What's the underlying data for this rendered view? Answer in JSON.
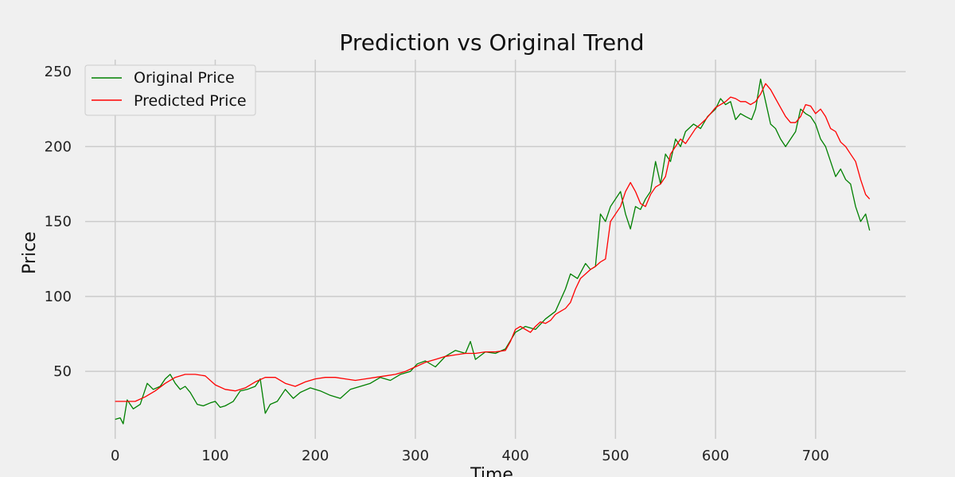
{
  "chart_data": {
    "type": "line",
    "title": "Prediction vs Original Trend",
    "xlabel": "Time",
    "ylabel": "Price",
    "xlim": [
      -30,
      790
    ],
    "ylim": [
      5,
      258
    ],
    "xticks": [
      0,
      100,
      200,
      300,
      400,
      500,
      600,
      700
    ],
    "yticks": [
      50,
      100,
      150,
      200,
      250
    ],
    "grid": true,
    "legend_position": "top-left",
    "background": "#f0f0f0",
    "series": [
      {
        "name": "Original Price",
        "color": "#008000",
        "x": [
          0,
          5,
          8,
          12,
          18,
          25,
          32,
          38,
          45,
          50,
          55,
          60,
          65,
          70,
          75,
          82,
          88,
          95,
          100,
          105,
          110,
          118,
          125,
          132,
          140,
          145,
          150,
          155,
          162,
          170,
          178,
          185,
          195,
          205,
          215,
          225,
          235,
          245,
          255,
          265,
          275,
          285,
          295,
          302,
          310,
          320,
          330,
          340,
          350,
          355,
          360,
          370,
          380,
          390,
          400,
          410,
          420,
          430,
          440,
          450,
          455,
          462,
          470,
          475,
          480,
          485,
          490,
          495,
          500,
          505,
          510,
          515,
          520,
          525,
          530,
          535,
          540,
          545,
          550,
          555,
          560,
          565,
          570,
          578,
          585,
          592,
          600,
          605,
          610,
          615,
          620,
          625,
          630,
          636,
          640,
          645,
          650,
          655,
          660,
          665,
          670,
          675,
          680,
          685,
          690,
          695,
          700,
          705,
          710,
          715,
          720,
          725,
          730,
          735,
          740,
          745,
          750,
          754
        ],
        "y": [
          18,
          19,
          15,
          31,
          25,
          28,
          42,
          38,
          40,
          45,
          48,
          42,
          38,
          40,
          36,
          28,
          27,
          29,
          30,
          26,
          27,
          30,
          37,
          38,
          40,
          45,
          22,
          28,
          30,
          38,
          32,
          36,
          39,
          37,
          34,
          32,
          38,
          40,
          42,
          46,
          44,
          48,
          50,
          55,
          57,
          53,
          60,
          64,
          62,
          70,
          58,
          63,
          62,
          65,
          76,
          80,
          78,
          85,
          90,
          105,
          115,
          112,
          122,
          118,
          120,
          155,
          150,
          160,
          165,
          170,
          155,
          145,
          160,
          158,
          165,
          170,
          190,
          175,
          195,
          190,
          205,
          200,
          210,
          215,
          212,
          220,
          225,
          232,
          228,
          230,
          218,
          222,
          220,
          218,
          225,
          245,
          230,
          215,
          212,
          205,
          200,
          205,
          210,
          225,
          222,
          220,
          215,
          205,
          200,
          190,
          180,
          185,
          178,
          175,
          160,
          150,
          155,
          144
        ]
      },
      {
        "name": "Predicted Price",
        "color": "#ff0000",
        "x": [
          0,
          10,
          20,
          30,
          40,
          50,
          60,
          70,
          80,
          90,
          100,
          110,
          120,
          130,
          140,
          150,
          160,
          170,
          180,
          190,
          200,
          210,
          220,
          230,
          240,
          250,
          260,
          270,
          280,
          290,
          300,
          310,
          320,
          330,
          340,
          350,
          360,
          370,
          380,
          390,
          395,
          400,
          405,
          410,
          415,
          420,
          425,
          430,
          435,
          440,
          445,
          450,
          455,
          460,
          465,
          470,
          475,
          480,
          485,
          490,
          495,
          500,
          505,
          510,
          515,
          520,
          525,
          530,
          535,
          540,
          545,
          550,
          555,
          560,
          565,
          570,
          575,
          580,
          585,
          590,
          595,
          600,
          605,
          610,
          615,
          620,
          625,
          630,
          635,
          640,
          645,
          650,
          655,
          660,
          665,
          670,
          675,
          680,
          685,
          690,
          695,
          700,
          705,
          710,
          715,
          720,
          725,
          730,
          735,
          740,
          745,
          750,
          754
        ],
        "y": [
          30,
          30,
          30,
          33,
          37,
          42,
          46,
          48,
          48,
          47,
          41,
          38,
          37,
          39,
          43,
          46,
          46,
          42,
          40,
          43,
          45,
          46,
          46,
          45,
          44,
          45,
          46,
          47,
          48,
          50,
          53,
          56,
          58,
          60,
          61,
          62,
          62,
          63,
          63,
          64,
          70,
          78,
          80,
          78,
          76,
          80,
          83,
          82,
          84,
          88,
          90,
          92,
          96,
          105,
          112,
          115,
          118,
          120,
          123,
          125,
          150,
          155,
          160,
          170,
          176,
          170,
          162,
          160,
          168,
          173,
          175,
          180,
          195,
          200,
          205,
          202,
          207,
          212,
          215,
          218,
          222,
          226,
          228,
          230,
          233,
          232,
          230,
          230,
          228,
          230,
          235,
          242,
          238,
          232,
          226,
          220,
          216,
          216,
          220,
          228,
          227,
          222,
          225,
          220,
          212,
          210,
          203,
          200,
          195,
          190,
          178,
          168,
          165
        ]
      }
    ]
  }
}
